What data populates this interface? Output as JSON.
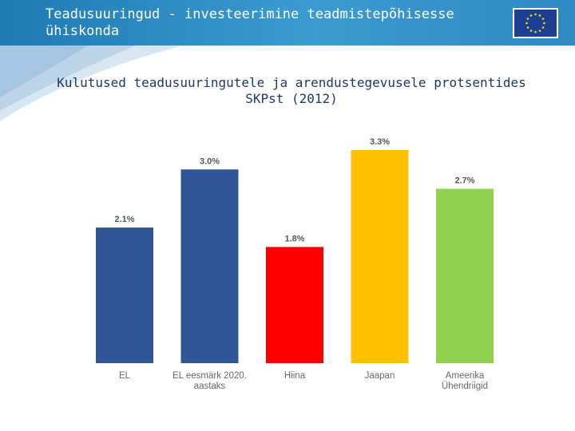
{
  "header": {
    "title": "Teadusuuringud - investeerimine teadmistepõhisesse ühiskonda",
    "flag_icon": "eu-flag-icon",
    "colors": {
      "bar": "#2d87c0",
      "flag_blue": "#1c3f94",
      "flag_star": "#f5d90a"
    }
  },
  "chart_data": {
    "type": "bar",
    "title": "Kulutused teadusuuringutele ja arendustegevusele protsentides SKPst (2012)",
    "categories": [
      [
        "EL"
      ],
      [
        "EL eesmärk 2020.",
        "aastaks"
      ],
      [
        "Hiina"
      ],
      [
        "Jaapan"
      ],
      [
        "Ameerika",
        "Ühendriigid"
      ]
    ],
    "values": [
      2.1,
      3.0,
      1.8,
      3.3,
      2.7
    ],
    "value_labels": [
      "2.1%",
      "3.0%",
      "1.8%",
      "3.3%",
      "2.7%"
    ],
    "colors": [
      "#2f5597",
      "#2f5597",
      "#ff0000",
      "#ffc000",
      "#92d050"
    ],
    "xlabel": "",
    "ylabel": "",
    "ylim": [
      0,
      3.3
    ],
    "grid": false,
    "legend": "none"
  }
}
